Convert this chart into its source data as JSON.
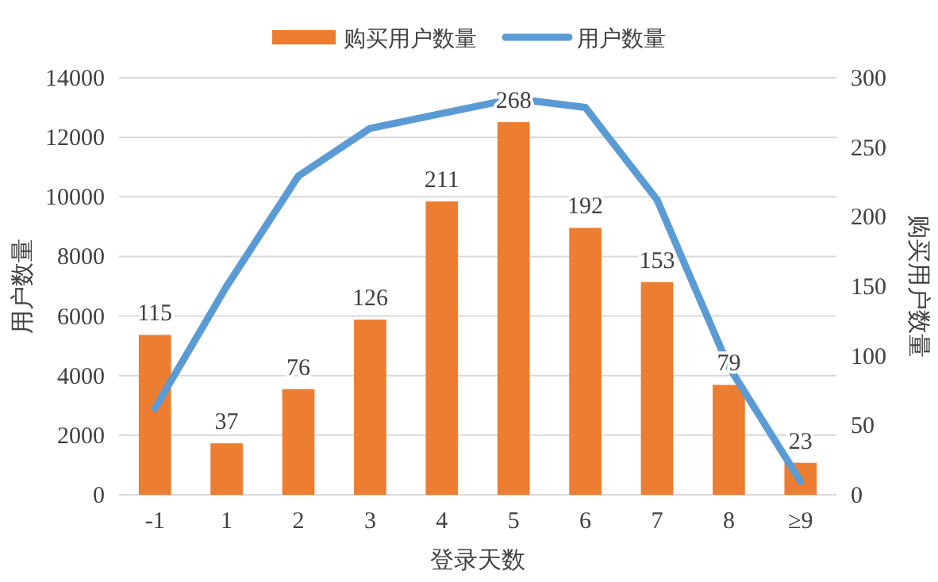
{
  "chart_data": {
    "type": "bar",
    "categories": [
      "-1",
      "1",
      "2",
      "3",
      "4",
      "5",
      "6",
      "7",
      "8",
      "≥9"
    ],
    "series": [
      {
        "name": "购买用户数量",
        "axis": "y2",
        "color": "#ed7d31",
        "data_labels": true,
        "values": [
          115,
          37,
          76,
          126,
          211,
          268,
          192,
          153,
          79,
          23
        ]
      },
      {
        "name": "用户数量",
        "type": "line",
        "axis": "y",
        "color": "#5b9bd5",
        "values": [
          2900,
          7000,
          10700,
          12300,
          12800,
          13300,
          13000,
          9900,
          4300,
          450
        ]
      }
    ],
    "xlabel": "登录天数",
    "ylabel": "用户数量",
    "y2label": "购买用户数量",
    "ylim": [
      0,
      14000
    ],
    "yticks": [
      0,
      2000,
      4000,
      6000,
      8000,
      10000,
      12000,
      14000
    ],
    "y2lim": [
      0,
      300
    ],
    "y2ticks": [
      0,
      50,
      100,
      150,
      200,
      250,
      300
    ],
    "grid": "y",
    "legend": "top"
  }
}
